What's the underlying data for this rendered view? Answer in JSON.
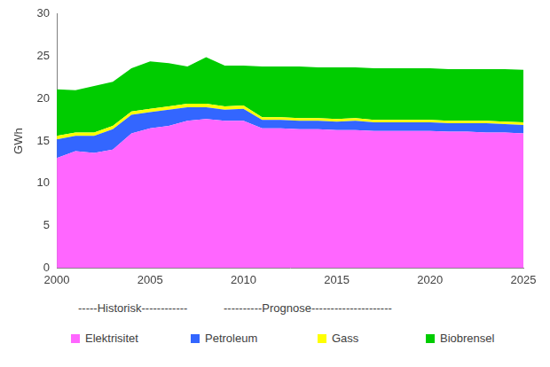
{
  "chart_data": {
    "type": "area",
    "stacked": true,
    "grid": false,
    "legend": "bottom",
    "y_label": "GWh",
    "annotations": [
      "-----Historisk------------",
      "----------Prognose---------------------"
    ],
    "x": [
      2000,
      2001,
      2002,
      2003,
      2004,
      2005,
      2006,
      2007,
      2008,
      2009,
      2010,
      2011,
      2012,
      2013,
      2014,
      2015,
      2016,
      2017,
      2018,
      2019,
      2020,
      2021,
      2022,
      2023,
      2024,
      2025
    ],
    "xlim": [
      2000,
      2025
    ],
    "xticks": [
      2000,
      2005,
      2010,
      2015,
      2020,
      2025
    ],
    "ylim": [
      0,
      30
    ],
    "yticks": [
      0,
      5,
      10,
      15,
      20,
      25,
      30
    ],
    "series": [
      {
        "name": "Elektrisitet",
        "color": "#ff66ff",
        "values": [
          13.0,
          13.8,
          13.6,
          14.0,
          15.9,
          16.5,
          16.8,
          17.4,
          17.6,
          17.4,
          17.4,
          16.5,
          16.5,
          16.4,
          16.4,
          16.3,
          16.3,
          16.2,
          16.2,
          16.2,
          16.2,
          16.1,
          16.1,
          16.0,
          16.0,
          15.9
        ]
      },
      {
        "name": "Petroleum",
        "color": "#3366ff",
        "values": [
          2.2,
          1.8,
          2.0,
          2.4,
          2.2,
          1.9,
          1.9,
          1.6,
          1.4,
          1.3,
          1.4,
          1.0,
          1.0,
          1.0,
          1.0,
          1.0,
          1.1,
          1.0,
          1.0,
          1.0,
          1.0,
          1.0,
          1.0,
          1.1,
          1.0,
          1.0
        ]
      },
      {
        "name": "Gass",
        "color": "#ffff00",
        "values": [
          0.4,
          0.4,
          0.4,
          0.4,
          0.4,
          0.4,
          0.4,
          0.4,
          0.4,
          0.4,
          0.4,
          0.3,
          0.3,
          0.3,
          0.3,
          0.3,
          0.3,
          0.3,
          0.3,
          0.3,
          0.3,
          0.3,
          0.3,
          0.3,
          0.3,
          0.3
        ]
      },
      {
        "name": "Biobrensel",
        "color": "#00cc00",
        "values": [
          5.5,
          5.0,
          5.5,
          5.2,
          5.1,
          5.6,
          5.1,
          4.4,
          5.5,
          4.8,
          4.7,
          6.0,
          6.0,
          6.1,
          6.0,
          6.1,
          6.0,
          6.1,
          6.1,
          6.1,
          6.1,
          6.1,
          6.1,
          6.1,
          6.2,
          6.2
        ]
      }
    ]
  }
}
